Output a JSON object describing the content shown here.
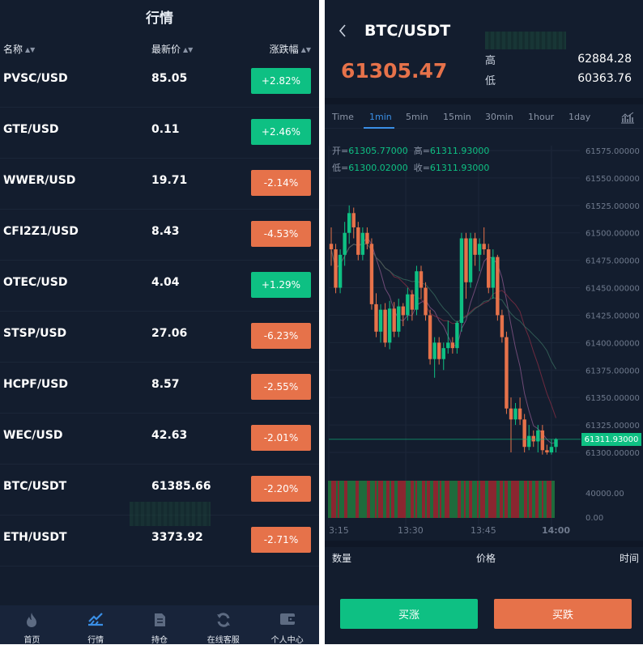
{
  "market": {
    "title": "行情",
    "columns": {
      "name": "名称",
      "price": "最新价",
      "change": "涨跌幅"
    },
    "rows": [
      {
        "pair": "PVSC/USD",
        "price": "85.05",
        "change": "+2.82%",
        "direction": "up"
      },
      {
        "pair": "GTE/USD",
        "price": "0.11",
        "change": "+2.46%",
        "direction": "up"
      },
      {
        "pair": "WWER/USD",
        "price": "19.71",
        "change": "-2.14%",
        "direction": "down"
      },
      {
        "pair": "CFI2Z1/USD",
        "price": "8.43",
        "change": "-4.53%",
        "direction": "down"
      },
      {
        "pair": "OTEC/USD",
        "price": "4.04",
        "change": "+1.29%",
        "direction": "up"
      },
      {
        "pair": "STSP/USD",
        "price": "27.06",
        "change": "-6.23%",
        "direction": "down"
      },
      {
        "pair": "HCPF/USD",
        "price": "8.57",
        "change": "-2.55%",
        "direction": "down"
      },
      {
        "pair": "WEC/USD",
        "price": "42.63",
        "change": "-2.01%",
        "direction": "down"
      },
      {
        "pair": "BTC/USDT",
        "price": "61385.66",
        "change": "-2.20%",
        "direction": "down"
      },
      {
        "pair": "ETH/USDT",
        "price": "3373.92",
        "change": "-2.71%",
        "direction": "down"
      }
    ]
  },
  "tabbar": {
    "items": [
      {
        "label": "首页",
        "icon": "flame-icon",
        "active": false
      },
      {
        "label": "行情",
        "icon": "market-chart-icon",
        "active": true
      },
      {
        "label": "持仓",
        "icon": "document-icon",
        "active": false
      },
      {
        "label": "在线客服",
        "icon": "refresh-icon",
        "active": false
      },
      {
        "label": "个人中心",
        "icon": "wallet-icon",
        "active": false
      }
    ]
  },
  "detail": {
    "symbol": "BTC/USDT",
    "last_price": "61305.47",
    "high_label": "高",
    "high_value": "62884.28",
    "low_label": "低",
    "low_value": "60363.76",
    "timeframes": [
      "Time",
      "1min",
      "5min",
      "15min",
      "30min",
      "1hour",
      "1day"
    ],
    "active_timeframe": "1min",
    "ohlc": {
      "open_label": "开=",
      "open": "61305.77000",
      "high_label": "高=",
      "high": "61311.93000",
      "low_label": "低=",
      "low": "61300.02000",
      "close_label": "收=",
      "close": "61311.93000"
    },
    "current_price_tag": "61311.93000",
    "trade_headers": {
      "qty": "数量",
      "price": "价格",
      "time": "时间"
    },
    "buy_label": "买涨",
    "sell_label": "买跌",
    "colors": {
      "up": "#0ec083",
      "down": "#e6724a",
      "accent": "#3a8fe6",
      "background": "#131d2e"
    }
  },
  "chart_data": {
    "type": "candlestick",
    "price_axis": {
      "ticks": [
        "61575.00000",
        "61550.00000",
        "61525.00000",
        "61500.00000",
        "61475.00000",
        "61450.00000",
        "61425.00000",
        "61400.00000",
        "61375.00000",
        "61350.00000",
        "61325.00000",
        "61300.00000"
      ],
      "range": [
        61292,
        61585
      ]
    },
    "volume_axis": {
      "ticks": [
        "40000.00",
        "0.00"
      ]
    },
    "time_axis": {
      "ticks": [
        "3:15",
        "13:30",
        "13:45",
        "14:00"
      ]
    },
    "candles": [
      {
        "o": 61490,
        "h": 61505,
        "l": 61470,
        "c": 61485
      },
      {
        "o": 61485,
        "h": 61490,
        "l": 61445,
        "c": 61450
      },
      {
        "o": 61450,
        "h": 61485,
        "l": 61445,
        "c": 61480
      },
      {
        "o": 61480,
        "h": 61510,
        "l": 61470,
        "c": 61500
      },
      {
        "o": 61500,
        "h": 61525,
        "l": 61490,
        "c": 61518
      },
      {
        "o": 61518,
        "h": 61523,
        "l": 61495,
        "c": 61505
      },
      {
        "o": 61505,
        "h": 61510,
        "l": 61475,
        "c": 61480
      },
      {
        "o": 61480,
        "h": 61505,
        "l": 61475,
        "c": 61500
      },
      {
        "o": 61500,
        "h": 61505,
        "l": 61485,
        "c": 61490
      },
      {
        "o": 61490,
        "h": 61495,
        "l": 61430,
        "c": 61435
      },
      {
        "o": 61435,
        "h": 61445,
        "l": 61405,
        "c": 61410
      },
      {
        "o": 61410,
        "h": 61435,
        "l": 61400,
        "c": 61430
      },
      {
        "o": 61430,
        "h": 61436,
        "l": 61396,
        "c": 61400
      },
      {
        "o": 61400,
        "h": 61438,
        "l": 61394,
        "c": 61431
      },
      {
        "o": 61431,
        "h": 61437,
        "l": 61405,
        "c": 61410
      },
      {
        "o": 61410,
        "h": 61440,
        "l": 61405,
        "c": 61433
      },
      {
        "o": 61433,
        "h": 61436,
        "l": 61415,
        "c": 61425
      },
      {
        "o": 61425,
        "h": 61450,
        "l": 61420,
        "c": 61444
      },
      {
        "o": 61444,
        "h": 61448,
        "l": 61420,
        "c": 61430
      },
      {
        "o": 61430,
        "h": 61470,
        "l": 61425,
        "c": 61465
      },
      {
        "o": 61465,
        "h": 61470,
        "l": 61440,
        "c": 61450
      },
      {
        "o": 61450,
        "h": 61455,
        "l": 61420,
        "c": 61425
      },
      {
        "o": 61425,
        "h": 61430,
        "l": 61380,
        "c": 61385
      },
      {
        "o": 61385,
        "h": 61405,
        "l": 61368,
        "c": 61400
      },
      {
        "o": 61400,
        "h": 61405,
        "l": 61380,
        "c": 61385
      },
      {
        "o": 61385,
        "h": 61400,
        "l": 61375,
        "c": 61395
      },
      {
        "o": 61395,
        "h": 61420,
        "l": 61390,
        "c": 61400
      },
      {
        "o": 61400,
        "h": 61405,
        "l": 61390,
        "c": 61395
      },
      {
        "o": 61395,
        "h": 61420,
        "l": 61390,
        "c": 61418
      },
      {
        "o": 61418,
        "h": 61500,
        "l": 61410,
        "c": 61495
      },
      {
        "o": 61495,
        "h": 61500,
        "l": 61440,
        "c": 61455
      },
      {
        "o": 61455,
        "h": 61500,
        "l": 61450,
        "c": 61495
      },
      {
        "o": 61495,
        "h": 61500,
        "l": 61470,
        "c": 61480
      },
      {
        "o": 61480,
        "h": 61495,
        "l": 61465,
        "c": 61490
      },
      {
        "o": 61490,
        "h": 61505,
        "l": 61480,
        "c": 61485
      },
      {
        "o": 61485,
        "h": 61490,
        "l": 61445,
        "c": 61450
      },
      {
        "o": 61450,
        "h": 61485,
        "l": 61440,
        "c": 61478
      },
      {
        "o": 61478,
        "h": 61480,
        "l": 61420,
        "c": 61425
      },
      {
        "o": 61425,
        "h": 61430,
        "l": 61400,
        "c": 61405
      },
      {
        "o": 61405,
        "h": 61410,
        "l": 61335,
        "c": 61340
      },
      {
        "o": 61340,
        "h": 61350,
        "l": 61300,
        "c": 61330
      },
      {
        "o": 61330,
        "h": 61345,
        "l": 61325,
        "c": 61340
      },
      {
        "o": 61340,
        "h": 61350,
        "l": 61325,
        "c": 61330
      },
      {
        "o": 61330,
        "h": 61335,
        "l": 61300,
        "c": 61305
      },
      {
        "o": 61305,
        "h": 61325,
        "l": 61302,
        "c": 61315
      },
      {
        "o": 61315,
        "h": 61320,
        "l": 61305,
        "c": 61310
      },
      {
        "o": 61310,
        "h": 61325,
        "l": 61300,
        "c": 61320
      },
      {
        "o": 61320,
        "h": 61325,
        "l": 61298,
        "c": 61302
      },
      {
        "o": 61302,
        "h": 61307,
        "l": 61298,
        "c": 61300
      },
      {
        "o": 61300,
        "h": 61312,
        "l": 61298,
        "c": 61305
      },
      {
        "o": 61305,
        "h": 61313,
        "l": 61300,
        "c": 61312
      }
    ]
  }
}
